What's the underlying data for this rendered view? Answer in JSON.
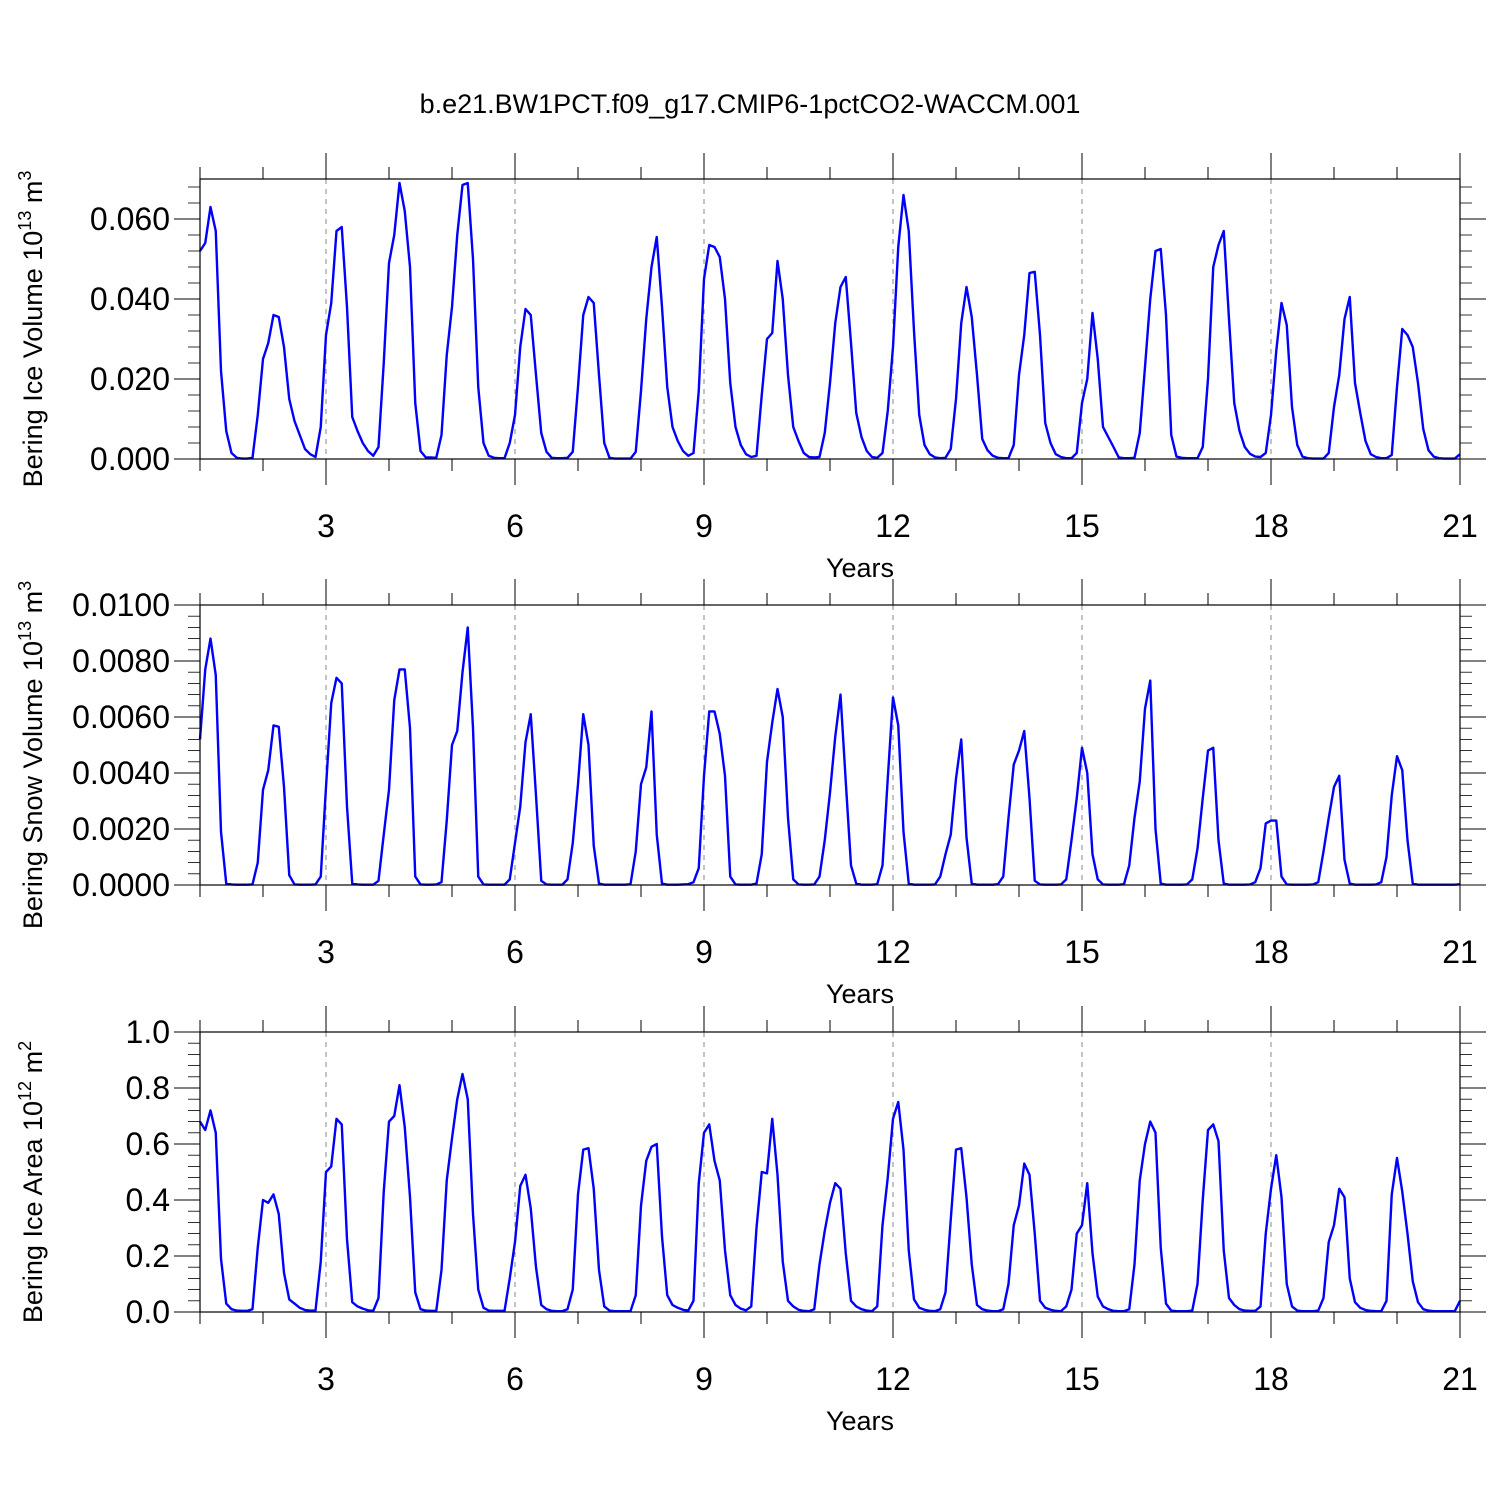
{
  "figure": {
    "title": "b.e21.BW1PCT.f09_g17.CMIP6-1pctCO2-WACCM.001"
  },
  "chart_data": [
    {
      "type": "line",
      "title": "",
      "xlabel": "Years",
      "ylabel": {
        "text": "Bering Ice Volume 10",
        "exp": "13",
        "unit": " m",
        "unit_exp": "3"
      },
      "xlim": [
        1,
        21
      ],
      "ylim": [
        0,
        0.07
      ],
      "xticks": [
        3,
        6,
        9,
        12,
        15,
        18,
        21
      ],
      "yticks": [
        0,
        0.02,
        0.04,
        0.06
      ],
      "ytick_labels": [
        "0.000",
        "0.020",
        "0.040",
        "0.060"
      ],
      "grid": "dashed vertical at major x ticks",
      "line_color": "#0000ff",
      "series": [
        {
          "x_start": 1,
          "x_step_months": 1,
          "values": [
            0.052,
            0.054,
            0.063,
            0.057,
            0.022,
            0.007,
            0.0015,
            0.0003,
            0.0001,
            0.0001,
            0.0003,
            0.011,
            0.025,
            0.029,
            0.036,
            0.0355,
            0.028,
            0.015,
            0.0095,
            0.006,
            0.0025,
            0.0012,
            0.0005,
            0.008,
            0.031,
            0.039,
            0.057,
            0.058,
            0.038,
            0.0105,
            0.007,
            0.004,
            0.002,
            0.0008,
            0.003,
            0.024,
            0.049,
            0.056,
            0.069,
            0.062,
            0.048,
            0.014,
            0.002,
            0.0004,
            0.0004,
            0.0003,
            0.006,
            0.026,
            0.038,
            0.056,
            0.0685,
            0.069,
            0.05,
            0.018,
            0.004,
            0.0008,
            0.0003,
            0.0002,
            0.0002,
            0.004,
            0.011,
            0.028,
            0.0375,
            0.036,
            0.021,
            0.0065,
            0.0018,
            0.0003,
            0.0002,
            0.0002,
            0.0003,
            0.0018,
            0.018,
            0.036,
            0.0405,
            0.039,
            0.021,
            0.004,
            0.0003,
            0.0001,
            0.0001,
            0.0001,
            0.0001,
            0.0018,
            0.017,
            0.035,
            0.048,
            0.0555,
            0.038,
            0.018,
            0.008,
            0.0045,
            0.002,
            0.0008,
            0.0015,
            0.017,
            0.045,
            0.0535,
            0.053,
            0.0505,
            0.04,
            0.019,
            0.008,
            0.0035,
            0.0012,
            0.0005,
            0.0008,
            0.016,
            0.03,
            0.0315,
            0.0495,
            0.04,
            0.021,
            0.008,
            0.0045,
            0.0015,
            0.0005,
            0.0004,
            0.0005,
            0.0065,
            0.019,
            0.034,
            0.043,
            0.0455,
            0.029,
            0.0115,
            0.0055,
            0.002,
            0.0005,
            0.0003,
            0.0015,
            0.012,
            0.028,
            0.053,
            0.066,
            0.057,
            0.032,
            0.011,
            0.0035,
            0.0012,
            0.0004,
            0.0002,
            0.0003,
            0.0025,
            0.015,
            0.034,
            0.043,
            0.0355,
            0.021,
            0.005,
            0.0022,
            0.0008,
            0.0003,
            0.0002,
            0.0002,
            0.0035,
            0.021,
            0.031,
            0.0465,
            0.0468,
            0.031,
            0.009,
            0.004,
            0.0012,
            0.0005,
            0.0002,
            0.0002,
            0.0015,
            0.014,
            0.02,
            0.0365,
            0.025,
            0.008,
            0.0055,
            0.003,
            0.0004,
            0.0002,
            0.0002,
            0.0003,
            0.0065,
            0.023,
            0.04,
            0.052,
            0.0525,
            0.036,
            0.006,
            0.0006,
            0.0003,
            0.0002,
            0.0002,
            0.0002,
            0.003,
            0.02,
            0.048,
            0.0535,
            0.057,
            0.035,
            0.014,
            0.007,
            0.003,
            0.0013,
            0.0006,
            0.0005,
            0.0015,
            0.011,
            0.027,
            0.039,
            0.0335,
            0.013,
            0.0035,
            0.0006,
            0.0002,
            0.0001,
            0.0001,
            0.0001,
            0.0015,
            0.013,
            0.021,
            0.035,
            0.0405,
            0.019,
            0.0115,
            0.0045,
            0.0012,
            0.0005,
            0.0002,
            0.0002,
            0.001,
            0.018,
            0.0325,
            0.031,
            0.028,
            0.019,
            0.0075,
            0.0022,
            0.0006,
            0.0002,
            0.0001,
            0.0001,
            0.0001,
            0.0012
          ]
        }
      ]
    },
    {
      "type": "line",
      "title": "",
      "xlabel": "Years",
      "ylabel": {
        "text": "Bering Snow Volume 10",
        "exp": "13",
        "unit": " m",
        "unit_exp": "3"
      },
      "xlim": [
        1,
        21
      ],
      "ylim": [
        0,
        0.01
      ],
      "xticks": [
        3,
        6,
        9,
        12,
        15,
        18,
        21
      ],
      "yticks": [
        0,
        0.002,
        0.004,
        0.006,
        0.008,
        0.01
      ],
      "ytick_labels": [
        "0.0000",
        "0.0020",
        "0.0040",
        "0.0060",
        "0.0080",
        "0.0100"
      ],
      "grid": "dashed vertical at major x ticks",
      "line_color": "#0000ff",
      "series": [
        {
          "x_start": 1,
          "x_step_months": 1,
          "values": [
            0.0052,
            0.0077,
            0.0088,
            0.0075,
            0.0019,
            5e-05,
            2e-05,
            1e-05,
            1e-05,
            1e-05,
            2e-05,
            0.0008,
            0.0034,
            0.0041,
            0.0057,
            0.00565,
            0.0035,
            0.00035,
            2e-05,
            1e-05,
            1e-05,
            1e-05,
            2e-05,
            0.0003,
            0.0035,
            0.0065,
            0.0074,
            0.0072,
            0.0028,
            5e-05,
            2e-05,
            1e-05,
            1e-05,
            1e-05,
            0.00015,
            0.0018,
            0.0034,
            0.0066,
            0.0077,
            0.0077,
            0.0056,
            0.0003,
            2e-05,
            1e-05,
            1e-05,
            2e-05,
            0.0001,
            0.0023,
            0.005,
            0.0055,
            0.0076,
            0.0092,
            0.0056,
            0.0003,
            2e-05,
            1e-05,
            1e-05,
            1e-05,
            1e-05,
            0.0002,
            0.0015,
            0.0028,
            0.0051,
            0.0061,
            0.0032,
            0.00015,
            2e-05,
            1e-05,
            1e-05,
            1e-05,
            0.0002,
            0.0015,
            0.0036,
            0.0061,
            0.005,
            0.0014,
            5e-05,
            1e-05,
            1e-05,
            1e-05,
            1e-05,
            1e-05,
            3e-05,
            0.0012,
            0.0036,
            0.0042,
            0.0062,
            0.0018,
            5e-05,
            1e-05,
            1e-05,
            1e-05,
            2e-05,
            3e-05,
            0.0001,
            0.0006,
            0.0039,
            0.0062,
            0.0062,
            0.0054,
            0.0039,
            0.0003,
            2e-05,
            1e-05,
            1e-05,
            1e-05,
            5e-05,
            0.0011,
            0.0044,
            0.0058,
            0.007,
            0.006,
            0.0024,
            0.0002,
            2e-05,
            1e-05,
            1e-05,
            2e-05,
            0.0003,
            0.0016,
            0.0033,
            0.0053,
            0.0068,
            0.0037,
            0.0007,
            5e-05,
            1e-05,
            1e-05,
            1e-05,
            3e-05,
            0.0007,
            0.0038,
            0.0067,
            0.0057,
            0.0019,
            5e-05,
            1e-05,
            1e-05,
            1e-05,
            1e-05,
            2e-05,
            0.0003,
            0.0011,
            0.0018,
            0.0038,
            0.0052,
            0.0017,
            5e-05,
            1e-05,
            1e-05,
            1e-05,
            1e-05,
            3e-05,
            0.0003,
            0.0024,
            0.0043,
            0.0048,
            0.0055,
            0.0031,
            0.00015,
            2e-05,
            1e-05,
            1e-05,
            1e-05,
            2e-05,
            0.0002,
            0.0016,
            0.0031,
            0.0049,
            0.004,
            0.0011,
            0.0002,
            2e-05,
            1e-05,
            1e-05,
            1e-05,
            3e-05,
            0.0007,
            0.0024,
            0.0037,
            0.0063,
            0.0073,
            0.002,
            5e-05,
            1e-05,
            1e-05,
            1e-05,
            1e-05,
            2e-05,
            0.0002,
            0.0013,
            0.0031,
            0.0048,
            0.0049,
            0.0016,
            5e-05,
            1e-05,
            1e-05,
            1e-05,
            1e-05,
            2e-05,
            0.0001,
            0.0006,
            0.0022,
            0.0023,
            0.0023,
            0.0003,
            2e-05,
            1e-05,
            1e-05,
            1e-05,
            1e-05,
            2e-05,
            0.0001,
            0.0012,
            0.0024,
            0.0035,
            0.0039,
            0.0009,
            5e-05,
            1e-05,
            1e-05,
            1e-05,
            1e-05,
            2e-05,
            0.0001,
            0.001,
            0.0032,
            0.0046,
            0.0041,
            0.0016,
            5e-05,
            1e-05,
            1e-05,
            1e-05,
            1e-05,
            1e-05,
            1e-05,
            1e-05,
            1e-05,
            3e-05
          ]
        }
      ]
    },
    {
      "type": "line",
      "title": "",
      "xlabel": "Years",
      "ylabel": {
        "text": "Bering Ice Area 10",
        "exp": "12",
        "unit": " m",
        "unit_exp": "2"
      },
      "xlim": [
        1,
        21
      ],
      "ylim": [
        0,
        1.0
      ],
      "xticks": [
        3,
        6,
        9,
        12,
        15,
        18,
        21
      ],
      "yticks": [
        0,
        0.2,
        0.4,
        0.6,
        0.8,
        1.0
      ],
      "ytick_labels": [
        "0.0",
        "0.2",
        "0.4",
        "0.6",
        "0.8",
        "1.0"
      ],
      "grid": "dashed vertical at major x ticks",
      "line_color": "#0000ff",
      "series": [
        {
          "x_start": 1,
          "x_step_months": 1,
          "values": [
            0.68,
            0.65,
            0.72,
            0.64,
            0.19,
            0.03,
            0.01,
            0.005,
            0.004,
            0.004,
            0.01,
            0.23,
            0.4,
            0.39,
            0.42,
            0.35,
            0.14,
            0.045,
            0.03,
            0.015,
            0.007,
            0.005,
            0.005,
            0.18,
            0.5,
            0.52,
            0.69,
            0.67,
            0.26,
            0.035,
            0.02,
            0.012,
            0.006,
            0.004,
            0.05,
            0.43,
            0.68,
            0.7,
            0.81,
            0.66,
            0.41,
            0.07,
            0.01,
            0.005,
            0.004,
            0.004,
            0.15,
            0.47,
            0.62,
            0.76,
            0.85,
            0.76,
            0.35,
            0.08,
            0.015,
            0.005,
            0.004,
            0.004,
            0.004,
            0.12,
            0.25,
            0.45,
            0.49,
            0.37,
            0.16,
            0.025,
            0.01,
            0.004,
            0.003,
            0.003,
            0.01,
            0.08,
            0.42,
            0.58,
            0.585,
            0.44,
            0.15,
            0.02,
            0.005,
            0.003,
            0.003,
            0.003,
            0.003,
            0.06,
            0.38,
            0.54,
            0.59,
            0.6,
            0.27,
            0.06,
            0.025,
            0.015,
            0.008,
            0.005,
            0.04,
            0.46,
            0.64,
            0.67,
            0.54,
            0.47,
            0.22,
            0.06,
            0.025,
            0.012,
            0.006,
            0.02,
            0.3,
            0.5,
            0.495,
            0.69,
            0.49,
            0.18,
            0.04,
            0.02,
            0.008,
            0.004,
            0.003,
            0.01,
            0.17,
            0.29,
            0.39,
            0.46,
            0.44,
            0.21,
            0.04,
            0.02,
            0.01,
            0.005,
            0.003,
            0.02,
            0.31,
            0.48,
            0.69,
            0.75,
            0.58,
            0.22,
            0.045,
            0.015,
            0.008,
            0.004,
            0.003,
            0.01,
            0.07,
            0.33,
            0.58,
            0.585,
            0.41,
            0.17,
            0.025,
            0.01,
            0.005,
            0.003,
            0.003,
            0.01,
            0.1,
            0.31,
            0.38,
            0.53,
            0.49,
            0.28,
            0.04,
            0.015,
            0.008,
            0.004,
            0.003,
            0.02,
            0.08,
            0.28,
            0.31,
            0.46,
            0.21,
            0.055,
            0.02,
            0.01,
            0.004,
            0.003,
            0.003,
            0.01,
            0.17,
            0.47,
            0.6,
            0.68,
            0.64,
            0.23,
            0.03,
            0.005,
            0.003,
            0.003,
            0.003,
            0.005,
            0.1,
            0.4,
            0.65,
            0.67,
            0.61,
            0.22,
            0.05,
            0.025,
            0.01,
            0.005,
            0.004,
            0.004,
            0.02,
            0.28,
            0.44,
            0.56,
            0.41,
            0.1,
            0.02,
            0.005,
            0.003,
            0.003,
            0.003,
            0.005,
            0.05,
            0.25,
            0.31,
            0.44,
            0.41,
            0.12,
            0.035,
            0.015,
            0.007,
            0.004,
            0.003,
            0.003,
            0.04,
            0.42,
            0.55,
            0.43,
            0.28,
            0.11,
            0.035,
            0.01,
            0.005,
            0.003,
            0.003,
            0.003,
            0.003,
            0.003,
            0.04
          ]
        }
      ]
    }
  ]
}
